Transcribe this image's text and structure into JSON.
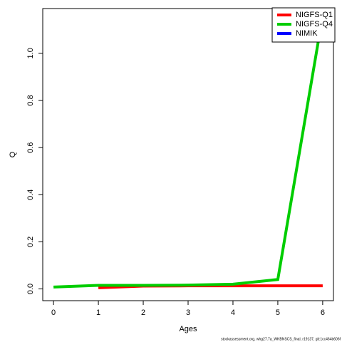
{
  "chart_data": {
    "type": "line",
    "x": [
      0,
      1,
      2,
      3,
      4,
      5,
      6
    ],
    "series": [
      {
        "name": "NIGFS-Q1",
        "color": "#ff0000",
        "values": [
          null,
          0.005,
          0.012,
          0.013,
          0.013,
          0.013,
          0.013
        ]
      },
      {
        "name": "NIGFS-Q4",
        "color": "#00cd00",
        "values": [
          0.008,
          0.015,
          0.015,
          0.016,
          0.02,
          0.04,
          1.16
        ]
      },
      {
        "name": "NIMIK",
        "color": "#0000ff",
        "values": [
          null,
          null,
          null,
          null,
          null,
          null,
          null
        ]
      }
    ],
    "xlabel": "Ages",
    "ylabel": "Q",
    "xlim": [
      -0.24,
      6.24
    ],
    "xticks": [
      0,
      1,
      2,
      3,
      4,
      5,
      6
    ],
    "ylim": [
      -0.05,
      1.19
    ],
    "yticks": [
      {
        "value": 0,
        "label": "0.0"
      },
      0.2,
      0.4,
      0.6,
      0.8,
      {
        "value": 1,
        "label": "1.0"
      }
    ],
    "legend": "top-right",
    "footer": "stockassessment.org, whg27.7a_WKBNSCS_final, r19137, git:1cc464b606f"
  }
}
